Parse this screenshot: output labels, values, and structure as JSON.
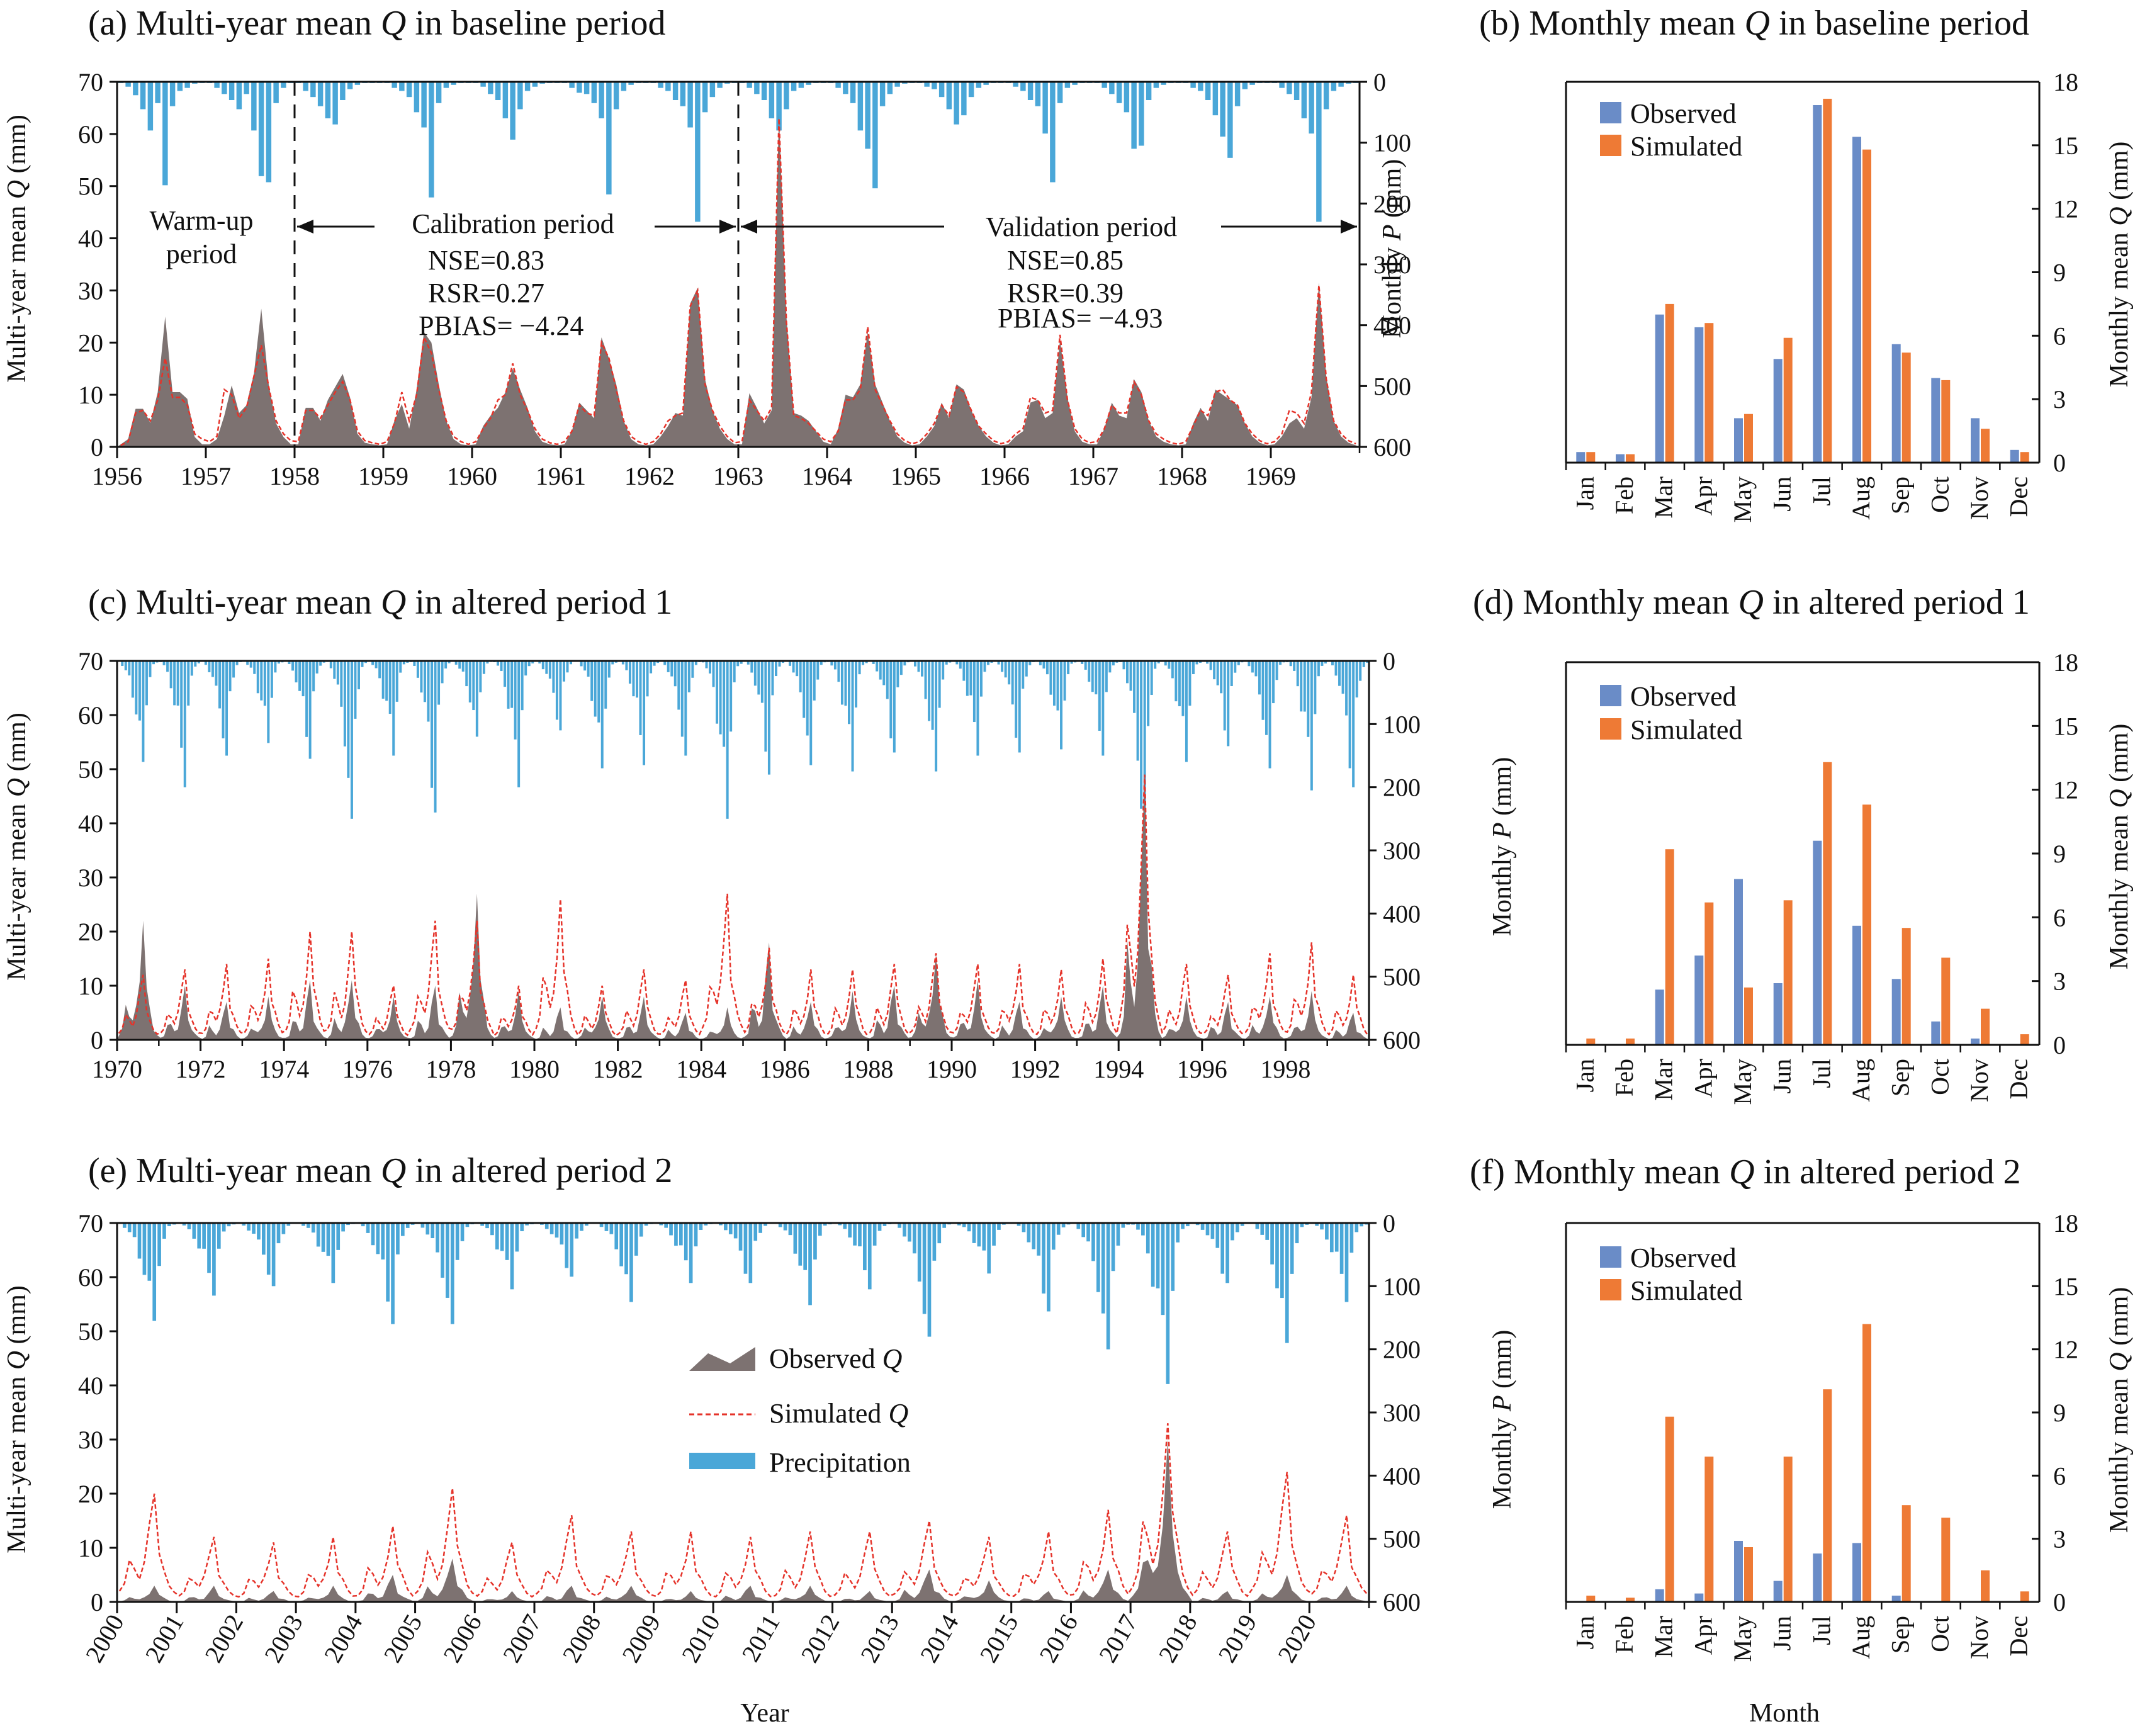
{
  "colors": {
    "observed_area": "#7d7271",
    "simulated_line": "#e5332a",
    "precip": "#4aa7d8",
    "observed_bar": "#6a8cc7",
    "simulated_bar": "#ee7a35"
  },
  "legend": {
    "observed_q": "Observed ",
    "simulated_q": "Simulated ",
    "q_symbol": "Q",
    "precipitation": "Precipitation"
  },
  "chart_data": [
    {
      "id": "a",
      "type": "area",
      "title_prefix": "(a) Multi-year mean ",
      "title_var": "Q",
      "title_suffix": " in baseline period",
      "ylabel_prefix": "Multi-year mean ",
      "ylabel_var": "Q",
      "ylabel_suffix": " (mm)",
      "y2label_prefix": "Monthly ",
      "y2label_var": "P",
      "y2label_suffix": " (mm)",
      "xlabel": "",
      "x_range": [
        1956,
        1970
      ],
      "ylim": [
        0,
        70
      ],
      "y_ticks": [
        0,
        10,
        20,
        30,
        40,
        50,
        60,
        70
      ],
      "y2lim": [
        600,
        0
      ],
      "y2_ticks": [
        0,
        100,
        200,
        300,
        400,
        500,
        600
      ],
      "x_ticks": [
        "1956",
        "1957",
        "1958",
        "1959",
        "1960",
        "1961",
        "1962",
        "1963",
        "1964",
        "1965",
        "1966",
        "1967",
        "1968",
        "1969"
      ],
      "observed_q": [
        0.5,
        1.5,
        7.3,
        7.3,
        4.6,
        10.5,
        25.0,
        10.5,
        10.5,
        9.2,
        1.9,
        0.5,
        0.5,
        1.5,
        6.0,
        11.8,
        6.5,
        8.0,
        14.0,
        26.5,
        12.0,
        4.5,
        1.9,
        0.5,
        0.5,
        7.5,
        7.5,
        5.0,
        9.0,
        11.5,
        14.0,
        9.5,
        2.5,
        0.8,
        0.5,
        0.3,
        0.5,
        5.0,
        8.2,
        3.5,
        11.0,
        22.0,
        20.0,
        12.0,
        5.0,
        1.5,
        0.5,
        0.3,
        0.5,
        4.0,
        6.0,
        7.5,
        10.5,
        15.0,
        11.0,
        7.5,
        3.0,
        1.0,
        0.5,
        0.3,
        0.5,
        3.0,
        8.5,
        7.0,
        5.5,
        21.0,
        17.0,
        12.0,
        5.0,
        1.5,
        0.5,
        0.3,
        0.5,
        2.0,
        4.0,
        6.5,
        6.0,
        27.5,
        30.5,
        13.0,
        7.0,
        3.5,
        1.5,
        0.5,
        0.5,
        10.3,
        7.5,
        4.5,
        7.0,
        64.0,
        25.0,
        6.5,
        6.0,
        5.0,
        3.0,
        1.0,
        0.5,
        3.5,
        10.0,
        9.5,
        12.0,
        22.0,
        12.0,
        8.5,
        5.0,
        2.0,
        0.8,
        0.3,
        0.5,
        2.0,
        4.0,
        8.5,
        5.5,
        12.0,
        11.0,
        7.0,
        4.0,
        2.0,
        0.8,
        0.3,
        0.5,
        2.0,
        3.0,
        8.5,
        9.0,
        5.5,
        6.5,
        20.5,
        9.5,
        3.0,
        1.0,
        0.5,
        0.5,
        3.5,
        8.5,
        6.0,
        5.5,
        13.0,
        10.5,
        5.0,
        2.0,
        1.0,
        0.5,
        0.3,
        0.5,
        4.5,
        7.5,
        5.0,
        11.0,
        10.0,
        9.0,
        8.0,
        4.5,
        2.0,
        0.8,
        0.3,
        0.5,
        2.0,
        4.5,
        5.5,
        3.5,
        9.5,
        31.5,
        13.5,
        5.0,
        2.0,
        0.8,
        0.3
      ],
      "simulated_q": [
        0.3,
        1.0,
        6.5,
        7.0,
        5.0,
        9.0,
        17.0,
        9.5,
        9.5,
        8.0,
        2.5,
        1.5,
        1.0,
        2.0,
        11.0,
        10.0,
        5.5,
        7.5,
        13.5,
        19.5,
        11.5,
        5.0,
        2.5,
        1.2,
        1.0,
        7.0,
        7.0,
        5.5,
        8.0,
        10.5,
        12.5,
        9.0,
        3.0,
        1.2,
        0.8,
        0.5,
        1.0,
        4.5,
        10.5,
        5.0,
        10.0,
        21.0,
        18.0,
        11.0,
        5.0,
        2.0,
        1.0,
        0.5,
        1.0,
        3.5,
        5.5,
        9.0,
        10.0,
        16.0,
        10.0,
        7.0,
        3.5,
        1.5,
        0.8,
        0.5,
        1.0,
        3.0,
        8.0,
        6.5,
        6.0,
        20.0,
        17.0,
        11.0,
        5.0,
        2.0,
        1.0,
        0.5,
        1.0,
        2.5,
        5.0,
        6.0,
        6.5,
        27.0,
        30.0,
        12.0,
        7.0,
        4.0,
        2.0,
        0.8,
        1.0,
        9.0,
        7.0,
        5.0,
        7.5,
        63.0,
        24.0,
        6.0,
        5.5,
        4.5,
        3.0,
        1.5,
        1.0,
        3.0,
        9.0,
        9.0,
        11.0,
        23.0,
        11.0,
        8.0,
        5.0,
        2.5,
        1.2,
        0.6,
        1.0,
        2.5,
        4.5,
        8.0,
        6.0,
        11.5,
        10.5,
        7.0,
        4.0,
        2.5,
        1.2,
        0.6,
        1.0,
        2.5,
        3.5,
        9.5,
        9.0,
        6.5,
        7.0,
        21.5,
        9.0,
        3.5,
        1.5,
        0.8,
        1.0,
        3.5,
        8.0,
        6.5,
        6.5,
        12.5,
        10.0,
        5.0,
        2.5,
        1.5,
        0.8,
        0.5,
        1.0,
        4.0,
        7.0,
        6.0,
        10.5,
        11.0,
        9.0,
        8.0,
        4.5,
        2.5,
        1.2,
        0.6,
        1.0,
        2.5,
        7.0,
        6.5,
        4.5,
        10.5,
        31.0,
        13.0,
        5.0,
        2.5,
        1.2,
        0.6
      ],
      "precip": [
        2,
        8,
        22,
        45,
        80,
        35,
        170,
        40,
        15,
        10,
        3,
        2,
        2,
        10,
        20,
        30,
        45,
        20,
        80,
        155,
        165,
        35,
        10,
        2,
        2,
        15,
        25,
        40,
        60,
        70,
        30,
        12,
        5,
        2,
        2,
        2,
        2,
        10,
        15,
        25,
        50,
        75,
        190,
        35,
        10,
        5,
        2,
        2,
        2,
        8,
        20,
        30,
        60,
        95,
        45,
        15,
        8,
        3,
        2,
        2,
        2,
        10,
        18,
        20,
        35,
        60,
        185,
        45,
        15,
        5,
        2,
        2,
        2,
        10,
        15,
        30,
        40,
        75,
        230,
        50,
        25,
        10,
        3,
        2,
        2,
        10,
        20,
        30,
        60,
        80,
        45,
        15,
        10,
        5,
        2,
        2,
        2,
        10,
        20,
        35,
        80,
        110,
        175,
        40,
        20,
        8,
        3,
        2,
        2,
        8,
        12,
        25,
        45,
        70,
        55,
        25,
        10,
        5,
        2,
        2,
        2,
        8,
        15,
        30,
        40,
        85,
        165,
        35,
        10,
        5,
        2,
        2,
        2,
        10,
        20,
        35,
        50,
        110,
        105,
        30,
        10,
        5,
        2,
        2,
        2,
        10,
        15,
        30,
        55,
        90,
        125,
        40,
        12,
        5,
        2,
        2,
        2,
        10,
        20,
        30,
        60,
        85,
        230,
        45,
        15,
        8,
        3,
        2
      ],
      "dividers": [
        1958,
        1963
      ],
      "annotations": {
        "warmup_line1": "Warm-up",
        "warmup_line2": "period",
        "calibration": "Calibration period",
        "validation": "Validation period",
        "cal_nse": "NSE=0.83",
        "cal_rsr": "RSR=0.27",
        "cal_pbias": "PBIAS= −4.24",
        "val_nse": "NSE=0.85",
        "val_rsr": "RSR=0.39",
        "val_pbias": "PBIAS= −4.93"
      }
    },
    {
      "id": "b",
      "type": "bar",
      "title_prefix": "(b) Monthly mean ",
      "title_var": "Q",
      "title_suffix": " in baseline period",
      "ylabel_prefix": "Monthly mean ",
      "ylabel_var": "Q",
      "ylabel_suffix": " (mm)",
      "xlabel": "",
      "categories": [
        "Jan",
        "Feb",
        "Mar",
        "Apr",
        "May",
        "Jun",
        "Jul",
        "Aug",
        "Sep",
        "Oct",
        "Nov",
        "Dec"
      ],
      "ylim": [
        0,
        18
      ],
      "y_ticks": [
        0,
        3,
        6,
        9,
        12,
        15,
        18
      ],
      "series": [
        {
          "name": "Observed",
          "values": [
            0.5,
            0.4,
            7.0,
            6.4,
            2.1,
            4.9,
            16.9,
            15.4,
            5.6,
            4.0,
            2.1,
            0.6
          ]
        },
        {
          "name": "Simulated",
          "values": [
            0.5,
            0.4,
            7.5,
            6.6,
            2.3,
            5.9,
            17.2,
            14.8,
            5.2,
            3.9,
            1.6,
            0.5
          ]
        }
      ],
      "legend_position": "top-left"
    },
    {
      "id": "c",
      "type": "area",
      "title_prefix": "(c) Multi-year mean ",
      "title_var": "Q",
      "title_suffix": " in altered period 1",
      "ylabel_prefix": "Multi-year mean ",
      "ylabel_var": "Q",
      "ylabel_suffix": " (mm)",
      "y2label_prefix": "Monthly ",
      "y2label_var": "P",
      "y2label_suffix": " (mm)",
      "xlabel": "",
      "x_range": [
        1970,
        2000
      ],
      "ylim": [
        0,
        70
      ],
      "y_ticks": [
        0,
        10,
        20,
        30,
        40,
        50,
        60,
        70
      ],
      "y2lim": [
        600,
        0
      ],
      "y2_ticks": [
        0,
        100,
        200,
        300,
        400,
        500,
        600
      ],
      "x_ticks": [
        "1970",
        "1972",
        "1974",
        "1976",
        "1978",
        "1980",
        "1982",
        "1984",
        "1986",
        "1988",
        "1990",
        "1992",
        "1994",
        "1996",
        "1998"
      ],
      "peaks_observed": [
        22,
        10,
        7,
        8,
        11,
        11,
        8,
        10,
        27,
        9,
        6,
        8,
        8,
        5,
        6,
        18,
        7,
        9,
        10,
        16,
        11,
        7,
        8,
        10,
        49,
        8,
        7,
        8,
        9,
        5
      ],
      "peaks_simulated": [
        12,
        13,
        14,
        15,
        20,
        20,
        10,
        22,
        22,
        10,
        26,
        10,
        13,
        11,
        27,
        17,
        13,
        13,
        14,
        16,
        14,
        14,
        13,
        15,
        49,
        14,
        12,
        16,
        18,
        12
      ],
      "peaks_precip": [
        160,
        200,
        150,
        130,
        155,
        250,
        150,
        240,
        120,
        200,
        110,
        170,
        165,
        150,
        250,
        180,
        165,
        175,
        145,
        175,
        150,
        145,
        140,
        150,
        300,
        160,
        135,
        170,
        205,
        200
      ]
    },
    {
      "id": "d",
      "type": "bar",
      "title_prefix": "(d) Monthly mean ",
      "title_var": "Q",
      "title_suffix": " in altered period 1",
      "ylabel_prefix": "Monthly mean  ",
      "ylabel_var": "Q",
      "ylabel_suffix": " (mm)",
      "xlabel": "",
      "categories": [
        "Jan",
        "Feb",
        "Mar",
        "Apr",
        "May",
        "Jun",
        "Jul",
        "Aug",
        "Sep",
        "Oct",
        "Nov",
        "Dec"
      ],
      "ylim": [
        0,
        18
      ],
      "y_ticks": [
        0,
        3,
        6,
        9,
        12,
        15,
        18
      ],
      "series": [
        {
          "name": "Observed",
          "values": [
            0.0,
            0.0,
            2.6,
            4.2,
            7.8,
            2.9,
            9.6,
            5.6,
            3.1,
            1.1,
            0.3,
            0.0
          ]
        },
        {
          "name": "Simulated",
          "values": [
            0.3,
            0.3,
            9.2,
            6.7,
            2.7,
            6.8,
            13.3,
            11.3,
            5.5,
            4.1,
            1.7,
            0.5
          ]
        }
      ],
      "legend_position": "top-left"
    },
    {
      "id": "e",
      "type": "area",
      "title_prefix": "(e) Multi-year mean ",
      "title_var": "Q",
      "title_suffix": " in altered period 2",
      "ylabel_prefix": "Multi-year mean ",
      "ylabel_var": "Q",
      "ylabel_suffix": " (mm)",
      "y2label_prefix": "Monthly ",
      "y2label_var": "P",
      "y2label_suffix": " (mm)",
      "xlabel": "Year",
      "x_range": [
        2000,
        2021
      ],
      "ylim": [
        0,
        70
      ],
      "y_ticks": [
        0,
        10,
        20,
        30,
        40,
        50,
        60,
        70
      ],
      "y2lim": [
        600,
        0
      ],
      "y2_ticks": [
        0,
        100,
        200,
        300,
        400,
        500,
        600
      ],
      "x_ticks": [
        "2000",
        "2001",
        "2002",
        "2003",
        "2004",
        "2005",
        "2006",
        "2007",
        "2008",
        "2009",
        "2010",
        "2011",
        "2012",
        "2013",
        "2014",
        "2015",
        "2016",
        "2017",
        "2018",
        "2019",
        "2020"
      ],
      "peaks_observed": [
        3,
        3,
        2,
        3,
        5,
        8,
        2,
        3,
        3,
        2,
        3,
        3,
        2,
        6,
        4,
        2,
        6,
        30,
        2,
        5,
        3
      ],
      "peaks_simulated": [
        20,
        12,
        11,
        12,
        14,
        21,
        11,
        16,
        13,
        13,
        12,
        13,
        13,
        15,
        12,
        13,
        17,
        33,
        13,
        24,
        16
      ],
      "peaks_precip": [
        155,
        115,
        100,
        95,
        160,
        160,
        105,
        85,
        125,
        95,
        95,
        130,
        105,
        180,
        80,
        140,
        200,
        255,
        95,
        190,
        125
      ],
      "legend_position": "center"
    },
    {
      "id": "f",
      "type": "bar",
      "title_prefix": "(f) Monthly mean ",
      "title_var": "Q",
      "title_suffix": " in altered period 2",
      "ylabel_prefix": "Monthly mean  ",
      "ylabel_var": "Q",
      "ylabel_suffix": " (mm)",
      "xlabel": "Month",
      "categories": [
        "Jan",
        "Feb",
        "Mar",
        "Apr",
        "May",
        "Jun",
        "Jul",
        "Aug",
        "Sep",
        "Oct",
        "Nov",
        "Dec"
      ],
      "ylim": [
        0,
        18
      ],
      "y_ticks": [
        0,
        3,
        6,
        9,
        12,
        15,
        18
      ],
      "series": [
        {
          "name": "Observed",
          "values": [
            0.0,
            0.0,
            0.6,
            0.4,
            2.9,
            1.0,
            2.3,
            2.8,
            0.3,
            0.0,
            0.0,
            0.0
          ]
        },
        {
          "name": "Simulated",
          "values": [
            0.3,
            0.2,
            8.8,
            6.9,
            2.6,
            6.9,
            10.1,
            13.2,
            4.6,
            4.0,
            1.5,
            0.5
          ]
        }
      ],
      "legend_position": "top-left"
    }
  ]
}
